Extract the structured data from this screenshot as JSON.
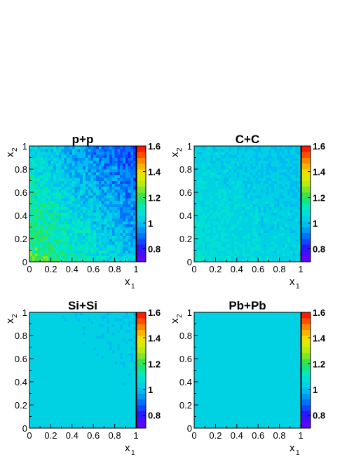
{
  "chart_data": [
    {
      "type": "heatmap",
      "title": "p+p",
      "xlabel": "x",
      "xlabel_sub": "1",
      "ylabel": "x",
      "ylabel_sub": "2",
      "xlim": [
        0,
        1
      ],
      "ylim": [
        0,
        1
      ],
      "xticks": [
        "0",
        "0.2",
        "0.4",
        "0.6",
        "0.8",
        "1"
      ],
      "yticks": [
        "0",
        "0.2",
        "0.4",
        "0.6",
        "0.8",
        "1"
      ],
      "color_range": [
        0.7,
        1.6
      ],
      "color_ticks": [
        "0.8",
        "1",
        "1.2",
        "1.4",
        "1.6"
      ],
      "bins": [
        40,
        40
      ],
      "z_model": {
        "base": 1.22,
        "slope_sum": -0.33,
        "slope_x1": -0.05,
        "noise": 0.07
      }
    },
    {
      "type": "heatmap",
      "title": "C+C",
      "xlabel": "x",
      "xlabel_sub": "1",
      "ylabel": "x",
      "ylabel_sub": "2",
      "xlim": [
        0,
        1
      ],
      "ylim": [
        0,
        1
      ],
      "xticks": [
        "0",
        "0.2",
        "0.4",
        "0.6",
        "0.8",
        "1"
      ],
      "yticks": [
        "0",
        "0.2",
        "0.4",
        "0.6",
        "0.8",
        "1"
      ],
      "color_range": [
        0.7,
        1.6
      ],
      "color_ticks": [
        "0.8",
        "1",
        "1.2",
        "1.4",
        "1.6"
      ],
      "bins": [
        40,
        40
      ],
      "z_model": {
        "base": 1.08,
        "slope_sum": -0.08,
        "slope_x1": 0.0,
        "noise": 0.035
      }
    },
    {
      "type": "heatmap",
      "title": "Si+Si",
      "xlabel": "x",
      "xlabel_sub": "1",
      "ylabel": "x",
      "ylabel_sub": "2",
      "xlim": [
        0,
        1
      ],
      "ylim": [
        0,
        1
      ],
      "xticks": [
        "0",
        "0.2",
        "0.4",
        "0.6",
        "0.8",
        "1"
      ],
      "yticks": [
        "0",
        "0.2",
        "0.4",
        "0.6",
        "0.8",
        "1"
      ],
      "color_range": [
        0.7,
        1.6
      ],
      "color_ticks": [
        "0.8",
        "1",
        "1.2",
        "1.4",
        "1.6"
      ],
      "bins": [
        40,
        40
      ],
      "z_model": {
        "base": 1.045,
        "slope_sum": -0.03,
        "slope_x1": 0.0,
        "noise": 0.012
      }
    },
    {
      "type": "heatmap",
      "title": "Pb+Pb",
      "xlabel": "x",
      "xlabel_sub": "1",
      "ylabel": "x",
      "ylabel_sub": "2",
      "xlim": [
        0,
        1
      ],
      "ylim": [
        0,
        1
      ],
      "xticks": [
        "0",
        "0.2",
        "0.4",
        "0.6",
        "0.8",
        "1"
      ],
      "yticks": [
        "0",
        "0.2",
        "0.4",
        "0.6",
        "0.8",
        "1"
      ],
      "color_range": [
        0.7,
        1.6
      ],
      "color_ticks": [
        "0.8",
        "1",
        "1.2",
        "1.4",
        "1.6"
      ],
      "bins": [
        40,
        40
      ],
      "z_model": {
        "base": 1.035,
        "slope_sum": 0.0,
        "slope_x1": 0.0,
        "noise": 0.0
      }
    }
  ]
}
